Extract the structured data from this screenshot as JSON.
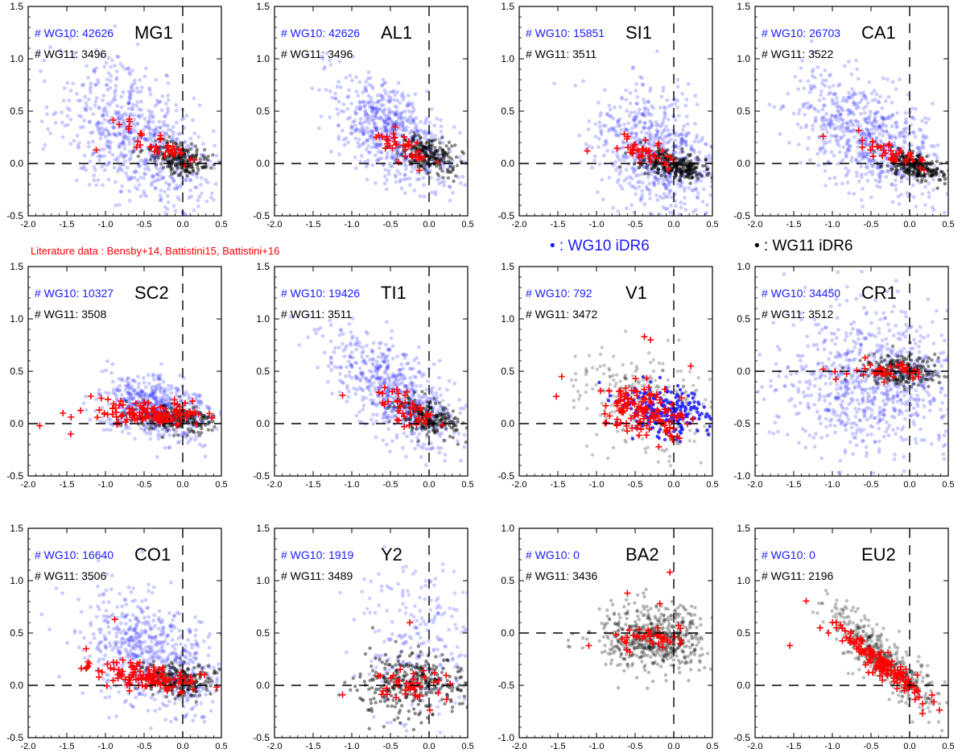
{
  "figure": {
    "legend_literature": "Literature data : Bensby+14, Battistini15, Battistini+16",
    "legend_wg10": "• : WG10 iDR6",
    "legend_wg11": "• : WG11 iDR6",
    "colors": {
      "wg10": "#1a1aff",
      "wg11": "#000000",
      "literature": "#ff0000",
      "axes": "#000000"
    }
  },
  "chart_data": [
    {
      "type": "scatter",
      "element": "MG1",
      "wg10_label": "# WG10: 42626",
      "wg11_label": "# WG11: 3496",
      "xlim": [
        -2.0,
        0.5
      ],
      "ylim": [
        -0.5,
        1.5
      ],
      "xticks": [
        "-2.0",
        "-1.5",
        "-1.0",
        "-0.5",
        "0.0",
        "0.5"
      ],
      "yticks": [
        "-0.5",
        "0.0",
        "0.5",
        "1.0",
        "1.5"
      ],
      "wg10_cloud": {
        "cx": -0.6,
        "cy": 0.25,
        "sx": 0.5,
        "sy": 0.32,
        "slope": -0.35,
        "n": 700,
        "alpha": 0.22
      },
      "wg11_cloud": {
        "cx": -0.05,
        "cy": 0.05,
        "sx": 0.2,
        "sy": 0.07,
        "slope": -0.1,
        "n": 220,
        "alpha": 0.45
      },
      "literature": {
        "cx": -0.3,
        "cy": 0.17,
        "sx": 0.22,
        "sy": 0.07,
        "slope": -0.35,
        "n": 40,
        "extra": [
          [
            -1.12,
            0.13
          ]
        ]
      }
    },
    {
      "type": "scatter",
      "element": "AL1",
      "wg10_label": "# WG10: 42626",
      "wg11_label": "# WG11: 3496",
      "xlim": [
        -2.0,
        0.5
      ],
      "ylim": [
        -0.5,
        1.5
      ],
      "xticks": [
        "-2.0",
        "-1.5",
        "-1.0",
        "-0.5",
        "0.0",
        "0.5"
      ],
      "yticks": [
        "-0.5",
        "0.0",
        "0.5",
        "1.0",
        "1.5"
      ],
      "wg10_cloud": {
        "cx": -0.45,
        "cy": 0.28,
        "sx": 0.4,
        "sy": 0.22,
        "slope": -0.4,
        "n": 650,
        "alpha": 0.22
      },
      "wg11_cloud": {
        "cx": 0.0,
        "cy": 0.08,
        "sx": 0.22,
        "sy": 0.08,
        "slope": -0.2,
        "n": 220,
        "alpha": 0.45
      },
      "literature": {
        "cx": -0.3,
        "cy": 0.15,
        "sx": 0.2,
        "sy": 0.07,
        "slope": -0.35,
        "n": 40,
        "extra": []
      }
    },
    {
      "type": "scatter",
      "element": "SI1",
      "wg10_label": "# WG10: 15851",
      "wg11_label": "# WG11: 3511",
      "xlim": [
        -2.0,
        0.5
      ],
      "ylim": [
        -0.5,
        1.5
      ],
      "xticks": [
        "-2.0",
        "-1.5",
        "-1.0",
        "-0.5",
        "0.0",
        "0.5"
      ],
      "yticks": [
        "-0.5",
        "0.0",
        "0.5",
        "1.0",
        "1.5"
      ],
      "wg10_cloud": {
        "cx": -0.25,
        "cy": 0.1,
        "sx": 0.38,
        "sy": 0.3,
        "slope": -0.2,
        "n": 650,
        "alpha": 0.22
      },
      "wg11_cloud": {
        "cx": 0.0,
        "cy": -0.02,
        "sx": 0.25,
        "sy": 0.06,
        "slope": -0.1,
        "n": 260,
        "alpha": 0.5
      },
      "literature": {
        "cx": -0.3,
        "cy": 0.08,
        "sx": 0.2,
        "sy": 0.06,
        "slope": -0.3,
        "n": 40,
        "extra": [
          [
            -1.12,
            0.12
          ]
        ]
      }
    },
    {
      "type": "scatter",
      "element": "CA1",
      "wg10_label": "# WG10: 26703",
      "wg11_label": "# WG11: 3522",
      "xlim": [
        -2.0,
        0.5
      ],
      "ylim": [
        -0.5,
        1.5
      ],
      "xticks": [
        "-2.0",
        "-1.5",
        "-1.0",
        "-0.5",
        "0.0",
        "0.5"
      ],
      "yticks": [
        "-0.5",
        "0.0",
        "0.5",
        "1.0",
        "1.5"
      ],
      "wg10_cloud": {
        "cx": -0.5,
        "cy": 0.25,
        "sx": 0.45,
        "sy": 0.25,
        "slope": -0.35,
        "n": 700,
        "alpha": 0.22
      },
      "wg11_cloud": {
        "cx": 0.05,
        "cy": -0.03,
        "sx": 0.2,
        "sy": 0.06,
        "slope": -0.15,
        "n": 220,
        "alpha": 0.5
      },
      "literature": {
        "cx": -0.25,
        "cy": 0.1,
        "sx": 0.22,
        "sy": 0.05,
        "slope": -0.3,
        "n": 40,
        "extra": [
          [
            -1.12,
            0.26
          ]
        ]
      }
    },
    {
      "type": "scatter",
      "element": "SC2",
      "wg10_label": "# WG10: 10327",
      "wg11_label": "# WG11: 3508",
      "xlim": [
        -2.0,
        0.5
      ],
      "ylim": [
        -0.5,
        1.5
      ],
      "xticks": [
        "-2.0",
        "-1.5",
        "-1.0",
        "-0.5",
        "0.0",
        "0.5"
      ],
      "yticks": [
        "-0.5",
        "0.0",
        "0.5",
        "1.0",
        "1.5"
      ],
      "wg10_cloud": {
        "cx": -0.35,
        "cy": 0.15,
        "sx": 0.35,
        "sy": 0.15,
        "slope": -0.1,
        "n": 600,
        "alpha": 0.22
      },
      "wg11_cloud": {
        "cx": -0.1,
        "cy": 0.05,
        "sx": 0.3,
        "sy": 0.07,
        "slope": -0.05,
        "n": 220,
        "alpha": 0.45
      },
      "literature": {
        "cx": -0.4,
        "cy": 0.1,
        "sx": 0.35,
        "sy": 0.06,
        "slope": -0.05,
        "n": 120,
        "extra": [
          [
            -1.85,
            -0.02
          ],
          [
            -1.55,
            0.1
          ],
          [
            -1.45,
            -0.1
          ]
        ]
      }
    },
    {
      "type": "scatter",
      "element": "TI1",
      "wg10_label": "# WG10: 19426",
      "wg11_label": "# WG11: 3511",
      "xlim": [
        -2.0,
        0.5
      ],
      "ylim": [
        -0.5,
        1.5
      ],
      "xticks": [
        "-2.0",
        "-1.5",
        "-1.0",
        "-0.5",
        "0.0",
        "0.5"
      ],
      "yticks": [
        "-0.5",
        "0.0",
        "0.5",
        "1.0",
        "1.5"
      ],
      "wg10_cloud": {
        "cx": -0.45,
        "cy": 0.3,
        "sx": 0.42,
        "sy": 0.22,
        "slope": -0.45,
        "n": 650,
        "alpha": 0.22
      },
      "wg11_cloud": {
        "cx": 0.0,
        "cy": 0.05,
        "sx": 0.2,
        "sy": 0.08,
        "slope": -0.2,
        "n": 220,
        "alpha": 0.45
      },
      "literature": {
        "cx": -0.3,
        "cy": 0.15,
        "sx": 0.22,
        "sy": 0.07,
        "slope": -0.35,
        "n": 40,
        "extra": [
          [
            -1.12,
            0.27
          ]
        ]
      }
    },
    {
      "type": "scatter",
      "element": "V1",
      "wg10_label": "# WG10: 792",
      "wg11_label": "# WG11: 3472",
      "xlim": [
        -2.0,
        0.5
      ],
      "ylim": [
        -0.5,
        1.5
      ],
      "xticks": [
        "-2.0",
        "-1.5",
        "-1.0",
        "-0.5",
        "0.0",
        "0.5"
      ],
      "yticks": [
        "-0.5",
        "0.0",
        "0.5",
        "1.0",
        "1.5"
      ],
      "wg10_cloud": {
        "cx": -0.1,
        "cy": 0.12,
        "sx": 0.3,
        "sy": 0.12,
        "slope": -0.1,
        "n": 220,
        "alpha": 0.85
      },
      "wg11_cloud": {
        "cx": -0.35,
        "cy": 0.2,
        "sx": 0.45,
        "sy": 0.22,
        "slope": -0.2,
        "n": 300,
        "alpha": 0.22
      },
      "literature": {
        "cx": -0.4,
        "cy": 0.12,
        "sx": 0.28,
        "sy": 0.12,
        "slope": -0.15,
        "n": 140,
        "extra": [
          [
            -1.45,
            0.45
          ],
          [
            -1.52,
            0.26
          ],
          [
            -0.38,
            0.83
          ],
          [
            -0.3,
            0.8
          ],
          [
            0.22,
            0.55
          ]
        ]
      }
    },
    {
      "type": "scatter",
      "element": "CR1",
      "wg10_label": "# WG10: 34450",
      "wg11_label": "# WG11: 3512",
      "xlim": [
        -2.0,
        0.5
      ],
      "ylim": [
        -1.0,
        1.0
      ],
      "xticks": [
        "-2.0",
        "-1.5",
        "-1.0",
        "-0.5",
        "0.0",
        "0.5"
      ],
      "yticks": [
        "-1.0",
        "-0.5",
        "0.0",
        "0.5",
        "1.0"
      ],
      "wg10_cloud": {
        "cx": -0.5,
        "cy": -0.1,
        "sx": 0.6,
        "sy": 0.35,
        "slope": 0.0,
        "n": 800,
        "alpha": 0.22
      },
      "wg11_cloud": {
        "cx": -0.1,
        "cy": 0.0,
        "sx": 0.25,
        "sy": 0.08,
        "slope": 0.0,
        "n": 220,
        "alpha": 0.45
      },
      "literature": {
        "cx": -0.3,
        "cy": 0.0,
        "sx": 0.25,
        "sy": 0.04,
        "slope": 0.0,
        "n": 40,
        "extra": [
          [
            -1.12,
            0.02
          ]
        ]
      }
    },
    {
      "type": "scatter",
      "element": "CO1",
      "wg10_label": "# WG10: 16640",
      "wg11_label": "# WG11: 3506",
      "xlim": [
        -2.0,
        0.5
      ],
      "ylim": [
        -0.5,
        1.5
      ],
      "xticks": [
        "-2.0",
        "-1.5",
        "-1.0",
        "-0.5",
        "0.0",
        "0.5"
      ],
      "yticks": [
        "-0.5",
        "0.0",
        "0.5",
        "1.0",
        "1.5"
      ],
      "wg10_cloud": {
        "cx": -0.4,
        "cy": 0.3,
        "sx": 0.45,
        "sy": 0.28,
        "slope": -0.3,
        "n": 650,
        "alpha": 0.22
      },
      "wg11_cloud": {
        "cx": -0.05,
        "cy": 0.05,
        "sx": 0.25,
        "sy": 0.08,
        "slope": -0.1,
        "n": 220,
        "alpha": 0.45
      },
      "literature": {
        "cx": -0.45,
        "cy": 0.08,
        "sx": 0.35,
        "sy": 0.06,
        "slope": -0.1,
        "n": 120,
        "extra": [
          [
            -1.25,
            0.35
          ],
          [
            -1.25,
            0.16
          ],
          [
            -0.88,
            0.63
          ]
        ]
      }
    },
    {
      "type": "scatter",
      "element": "Y2",
      "wg10_label": "# WG10: 1919",
      "wg11_label": "# WG11: 3489",
      "xlim": [
        -2.0,
        0.5
      ],
      "ylim": [
        -0.5,
        1.5
      ],
      "xticks": [
        "-2.0",
        "-1.5",
        "-1.0",
        "-0.5",
        "0.0",
        "0.5"
      ],
      "yticks": [
        "-0.5",
        "0.0",
        "0.5",
        "1.0",
        "1.5"
      ],
      "wg10_cloud": {
        "cx": -0.1,
        "cy": 0.35,
        "sx": 0.4,
        "sy": 0.4,
        "slope": 0.0,
        "n": 260,
        "alpha": 0.2
      },
      "wg11_cloud": {
        "cx": -0.2,
        "cy": 0.0,
        "sx": 0.4,
        "sy": 0.15,
        "slope": 0.0,
        "n": 320,
        "alpha": 0.45
      },
      "literature": {
        "cx": -0.25,
        "cy": 0.0,
        "sx": 0.25,
        "sy": 0.08,
        "slope": 0.0,
        "n": 40,
        "extra": [
          [
            -1.12,
            -0.09
          ],
          [
            -0.25,
            0.6
          ]
        ]
      }
    },
    {
      "type": "scatter",
      "element": "BA2",
      "wg10_label": "# WG10: 0",
      "wg11_label": "# WG11: 3436",
      "xlim": [
        -2.0,
        0.5
      ],
      "ylim": [
        -1.0,
        1.0
      ],
      "xticks": [
        "-2.0",
        "-1.5",
        "-1.0",
        "-0.5",
        "0.0",
        "0.5"
      ],
      "yticks": [
        "-1.0",
        "-0.5",
        "0.0",
        "0.5",
        "1.0"
      ],
      "wg10_cloud": null,
      "wg11_cloud": {
        "cx": -0.25,
        "cy": -0.05,
        "sx": 0.35,
        "sy": 0.15,
        "slope": 0.0,
        "n": 600,
        "alpha": 0.28
      },
      "literature": {
        "cx": -0.3,
        "cy": -0.05,
        "sx": 0.25,
        "sy": 0.06,
        "slope": 0.0,
        "n": 40,
        "extra": [
          [
            -1.1,
            -0.12
          ],
          [
            -0.6,
            0.38
          ],
          [
            -0.05,
            0.58
          ],
          [
            -0.18,
            0.28
          ]
        ]
      }
    },
    {
      "type": "scatter",
      "element": "EU2",
      "wg10_label": "# WG10: 0",
      "wg11_label": "# WG11: 2196",
      "xlim": [
        -2.0,
        0.5
      ],
      "ylim": [
        -0.5,
        1.5
      ],
      "xticks": [
        "-2.0",
        "-1.5",
        "-1.0",
        "-0.5",
        "0.0",
        "0.5"
      ],
      "yticks": [
        "-0.5",
        "0.0",
        "0.5",
        "1.0",
        "1.5"
      ],
      "wg10_cloud": null,
      "wg11_cloud": {
        "cx": -0.35,
        "cy": 0.25,
        "sx": 0.35,
        "sy": 0.12,
        "slope": -0.6,
        "n": 500,
        "alpha": 0.25
      },
      "literature": {
        "cx": -0.35,
        "cy": 0.2,
        "sx": 0.3,
        "sy": 0.06,
        "slope": -0.6,
        "n": 140,
        "extra": [
          [
            -1.55,
            0.38
          ],
          [
            -1.05,
            0.5
          ]
        ]
      }
    }
  ]
}
